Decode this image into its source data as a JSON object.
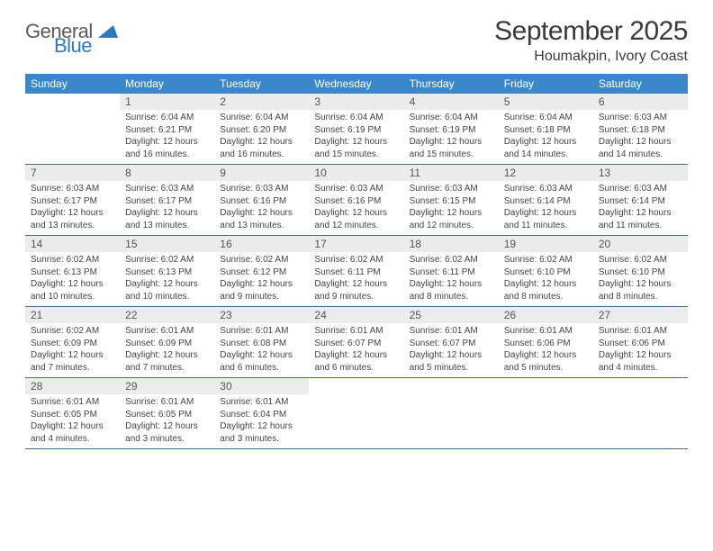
{
  "logo": {
    "text1": "General",
    "text2": "Blue"
  },
  "title": "September 2025",
  "location": "Houmakpin, Ivory Coast",
  "colors": {
    "header_bg": "#3a87c9",
    "header_text": "#ffffff",
    "daynum_bg": "#ebecec",
    "border": "#4a6a8a",
    "logo_gray": "#5a5a5a",
    "logo_blue": "#2f78bd"
  },
  "day_names": [
    "Sunday",
    "Monday",
    "Tuesday",
    "Wednesday",
    "Thursday",
    "Friday",
    "Saturday"
  ],
  "weeks": [
    [
      {
        "empty": true
      },
      {
        "num": "1",
        "sunrise": "Sunrise: 6:04 AM",
        "sunset": "Sunset: 6:21 PM",
        "daylight1": "Daylight: 12 hours",
        "daylight2": "and 16 minutes."
      },
      {
        "num": "2",
        "sunrise": "Sunrise: 6:04 AM",
        "sunset": "Sunset: 6:20 PM",
        "daylight1": "Daylight: 12 hours",
        "daylight2": "and 16 minutes."
      },
      {
        "num": "3",
        "sunrise": "Sunrise: 6:04 AM",
        "sunset": "Sunset: 6:19 PM",
        "daylight1": "Daylight: 12 hours",
        "daylight2": "and 15 minutes."
      },
      {
        "num": "4",
        "sunrise": "Sunrise: 6:04 AM",
        "sunset": "Sunset: 6:19 PM",
        "daylight1": "Daylight: 12 hours",
        "daylight2": "and 15 minutes."
      },
      {
        "num": "5",
        "sunrise": "Sunrise: 6:04 AM",
        "sunset": "Sunset: 6:18 PM",
        "daylight1": "Daylight: 12 hours",
        "daylight2": "and 14 minutes."
      },
      {
        "num": "6",
        "sunrise": "Sunrise: 6:03 AM",
        "sunset": "Sunset: 6:18 PM",
        "daylight1": "Daylight: 12 hours",
        "daylight2": "and 14 minutes."
      }
    ],
    [
      {
        "num": "7",
        "sunrise": "Sunrise: 6:03 AM",
        "sunset": "Sunset: 6:17 PM",
        "daylight1": "Daylight: 12 hours",
        "daylight2": "and 13 minutes."
      },
      {
        "num": "8",
        "sunrise": "Sunrise: 6:03 AM",
        "sunset": "Sunset: 6:17 PM",
        "daylight1": "Daylight: 12 hours",
        "daylight2": "and 13 minutes."
      },
      {
        "num": "9",
        "sunrise": "Sunrise: 6:03 AM",
        "sunset": "Sunset: 6:16 PM",
        "daylight1": "Daylight: 12 hours",
        "daylight2": "and 13 minutes."
      },
      {
        "num": "10",
        "sunrise": "Sunrise: 6:03 AM",
        "sunset": "Sunset: 6:16 PM",
        "daylight1": "Daylight: 12 hours",
        "daylight2": "and 12 minutes."
      },
      {
        "num": "11",
        "sunrise": "Sunrise: 6:03 AM",
        "sunset": "Sunset: 6:15 PM",
        "daylight1": "Daylight: 12 hours",
        "daylight2": "and 12 minutes."
      },
      {
        "num": "12",
        "sunrise": "Sunrise: 6:03 AM",
        "sunset": "Sunset: 6:14 PM",
        "daylight1": "Daylight: 12 hours",
        "daylight2": "and 11 minutes."
      },
      {
        "num": "13",
        "sunrise": "Sunrise: 6:03 AM",
        "sunset": "Sunset: 6:14 PM",
        "daylight1": "Daylight: 12 hours",
        "daylight2": "and 11 minutes."
      }
    ],
    [
      {
        "num": "14",
        "sunrise": "Sunrise: 6:02 AM",
        "sunset": "Sunset: 6:13 PM",
        "daylight1": "Daylight: 12 hours",
        "daylight2": "and 10 minutes."
      },
      {
        "num": "15",
        "sunrise": "Sunrise: 6:02 AM",
        "sunset": "Sunset: 6:13 PM",
        "daylight1": "Daylight: 12 hours",
        "daylight2": "and 10 minutes."
      },
      {
        "num": "16",
        "sunrise": "Sunrise: 6:02 AM",
        "sunset": "Sunset: 6:12 PM",
        "daylight1": "Daylight: 12 hours",
        "daylight2": "and 9 minutes."
      },
      {
        "num": "17",
        "sunrise": "Sunrise: 6:02 AM",
        "sunset": "Sunset: 6:11 PM",
        "daylight1": "Daylight: 12 hours",
        "daylight2": "and 9 minutes."
      },
      {
        "num": "18",
        "sunrise": "Sunrise: 6:02 AM",
        "sunset": "Sunset: 6:11 PM",
        "daylight1": "Daylight: 12 hours",
        "daylight2": "and 8 minutes."
      },
      {
        "num": "19",
        "sunrise": "Sunrise: 6:02 AM",
        "sunset": "Sunset: 6:10 PM",
        "daylight1": "Daylight: 12 hours",
        "daylight2": "and 8 minutes."
      },
      {
        "num": "20",
        "sunrise": "Sunrise: 6:02 AM",
        "sunset": "Sunset: 6:10 PM",
        "daylight1": "Daylight: 12 hours",
        "daylight2": "and 8 minutes."
      }
    ],
    [
      {
        "num": "21",
        "sunrise": "Sunrise: 6:02 AM",
        "sunset": "Sunset: 6:09 PM",
        "daylight1": "Daylight: 12 hours",
        "daylight2": "and 7 minutes."
      },
      {
        "num": "22",
        "sunrise": "Sunrise: 6:01 AM",
        "sunset": "Sunset: 6:09 PM",
        "daylight1": "Daylight: 12 hours",
        "daylight2": "and 7 minutes."
      },
      {
        "num": "23",
        "sunrise": "Sunrise: 6:01 AM",
        "sunset": "Sunset: 6:08 PM",
        "daylight1": "Daylight: 12 hours",
        "daylight2": "and 6 minutes."
      },
      {
        "num": "24",
        "sunrise": "Sunrise: 6:01 AM",
        "sunset": "Sunset: 6:07 PM",
        "daylight1": "Daylight: 12 hours",
        "daylight2": "and 6 minutes."
      },
      {
        "num": "25",
        "sunrise": "Sunrise: 6:01 AM",
        "sunset": "Sunset: 6:07 PM",
        "daylight1": "Daylight: 12 hours",
        "daylight2": "and 5 minutes."
      },
      {
        "num": "26",
        "sunrise": "Sunrise: 6:01 AM",
        "sunset": "Sunset: 6:06 PM",
        "daylight1": "Daylight: 12 hours",
        "daylight2": "and 5 minutes."
      },
      {
        "num": "27",
        "sunrise": "Sunrise: 6:01 AM",
        "sunset": "Sunset: 6:06 PM",
        "daylight1": "Daylight: 12 hours",
        "daylight2": "and 4 minutes."
      }
    ],
    [
      {
        "num": "28",
        "sunrise": "Sunrise: 6:01 AM",
        "sunset": "Sunset: 6:05 PM",
        "daylight1": "Daylight: 12 hours",
        "daylight2": "and 4 minutes."
      },
      {
        "num": "29",
        "sunrise": "Sunrise: 6:01 AM",
        "sunset": "Sunset: 6:05 PM",
        "daylight1": "Daylight: 12 hours",
        "daylight2": "and 3 minutes."
      },
      {
        "num": "30",
        "sunrise": "Sunrise: 6:01 AM",
        "sunset": "Sunset: 6:04 PM",
        "daylight1": "Daylight: 12 hours",
        "daylight2": "and 3 minutes."
      },
      {
        "empty": true
      },
      {
        "empty": true
      },
      {
        "empty": true
      },
      {
        "empty": true
      }
    ]
  ]
}
